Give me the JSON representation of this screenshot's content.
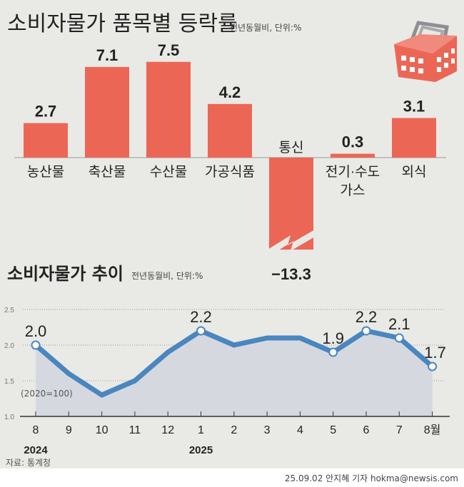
{
  "chart_data": [
    {
      "type": "bar",
      "title": "소비자물가 품목별 등락률",
      "subtitle": "전년동월비, 단위:%",
      "categories": [
        "농산물",
        "축산물",
        "수산물",
        "가공식품",
        "통신",
        "전기·수도·가스",
        "외식"
      ],
      "category_lines": [
        [
          "농산물"
        ],
        [
          "축산물"
        ],
        [
          "수산물"
        ],
        [
          "가공식품"
        ],
        [
          "통신"
        ],
        [
          "전기·수도",
          "가스"
        ],
        [
          "외식"
        ]
      ],
      "values": [
        2.7,
        7.1,
        7.5,
        4.2,
        -13.3,
        0.3,
        3.1
      ],
      "value_labels": [
        "2.7",
        "7.1",
        "7.5",
        "4.2",
        "−13.3",
        "0.3",
        "3.1"
      ],
      "color": "#ec6656",
      "truncated": "통신 bar shown with break"
    },
    {
      "type": "line",
      "title": "소비자물가 추이",
      "subtitle": "전년동월비, 단위:%",
      "note": "(2020=100)",
      "x": [
        "8",
        "9",
        "10",
        "11",
        "12",
        "1",
        "2",
        "3",
        "4",
        "5",
        "6",
        "7",
        "8월"
      ],
      "year_labels": [
        {
          "index": 0,
          "label": "2024"
        },
        {
          "index": 5,
          "label": "2025"
        }
      ],
      "values": [
        2.0,
        1.6,
        1.3,
        1.5,
        1.9,
        2.2,
        2.0,
        2.1,
        2.1,
        1.9,
        2.2,
        2.1,
        1.7
      ],
      "labeled_points": [
        0,
        5,
        9,
        10,
        11,
        12
      ],
      "point_labels": [
        "2.0",
        "1.6",
        "1.3",
        "1.5",
        "1.9",
        "2.2",
        "2.0",
        "2.1",
        "2.1",
        "1.9",
        "2.2",
        "2.1",
        "1.7"
      ],
      "yticks": [
        "1.0",
        "1.5",
        "2.0",
        "2.5"
      ],
      "ylim": [
        1.0,
        2.5
      ],
      "grid": true,
      "line_color": "#4a86c0",
      "fill_color": "#d5d9df"
    }
  ],
  "source": "자료: 통계청",
  "credit": "25.09.02 안지혜 기자 hokma@newsis.com",
  "icons": [
    "shopping-basket-icon"
  ]
}
